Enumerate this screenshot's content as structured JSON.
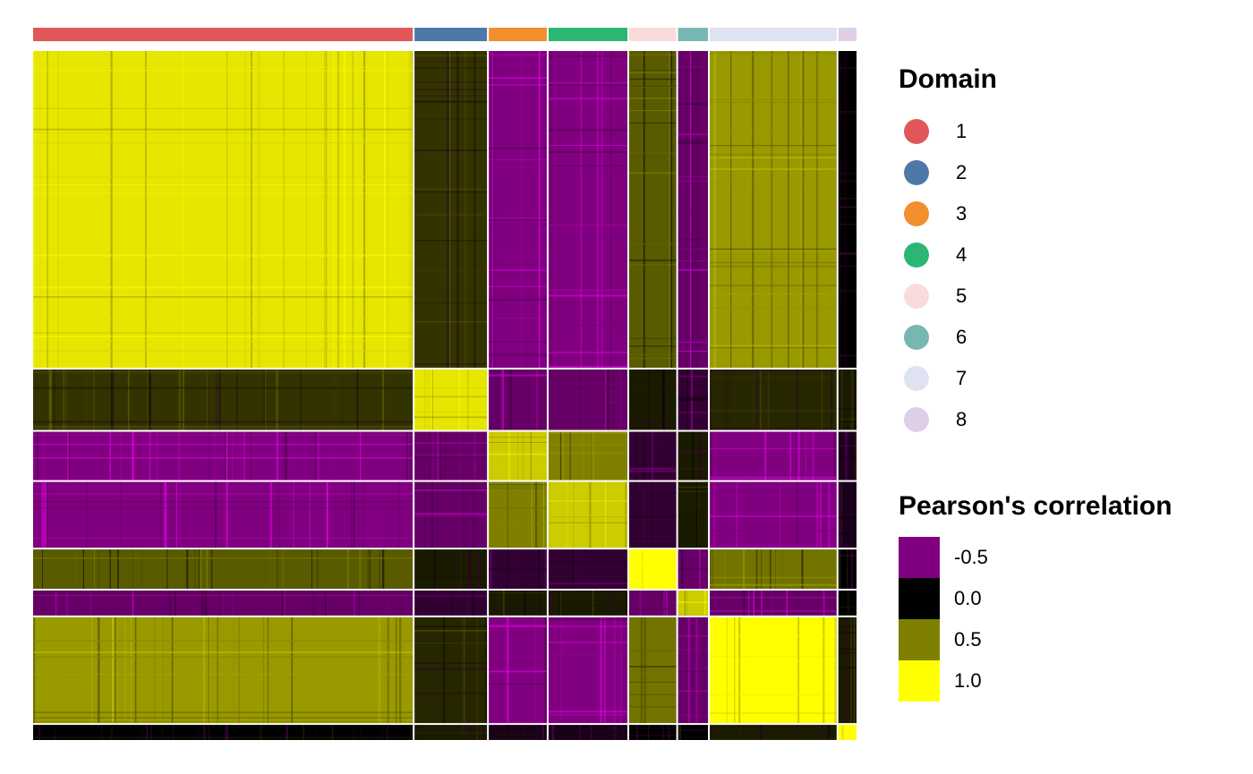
{
  "chart_data": {
    "type": "heatmap",
    "value": "Pearson's correlation between spots, grouped by spatial domain",
    "domains": [
      {
        "label": "1",
        "color": "#E15759",
        "n_spots": 419
      },
      {
        "label": "2",
        "color": "#4E79A7",
        "n_spots": 80
      },
      {
        "label": "3",
        "color": "#F28E2B",
        "n_spots": 64
      },
      {
        "label": "4",
        "color": "#2BB673",
        "n_spots": 87
      },
      {
        "label": "5",
        "color": "#FADADA",
        "n_spots": 52
      },
      {
        "label": "6",
        "color": "#76B7B2",
        "n_spots": 33
      },
      {
        "label": "7",
        "color": "#DFE2F0",
        "n_spots": 140
      },
      {
        "label": "8",
        "color": "#DECFE6",
        "n_spots": 20
      }
    ],
    "block_mean_correlation": [
      [
        0.9,
        0.2,
        -0.5,
        -0.5,
        0.35,
        -0.4,
        0.6,
        0.0
      ],
      [
        0.2,
        0.9,
        -0.4,
        -0.4,
        0.1,
        -0.2,
        0.15,
        0.1
      ],
      [
        -0.5,
        -0.4,
        0.8,
        0.5,
        -0.2,
        0.1,
        -0.5,
        -0.1
      ],
      [
        -0.5,
        -0.4,
        0.5,
        0.8,
        -0.2,
        0.1,
        -0.5,
        -0.1
      ],
      [
        0.35,
        0.1,
        -0.2,
        -0.2,
        1.0,
        -0.4,
        0.45,
        0.0
      ],
      [
        -0.4,
        -0.2,
        0.1,
        0.1,
        -0.4,
        0.8,
        -0.4,
        0.0
      ],
      [
        0.6,
        0.15,
        -0.5,
        -0.5,
        0.45,
        -0.4,
        1.0,
        0.1
      ],
      [
        0.0,
        0.1,
        -0.1,
        -0.1,
        0.0,
        0.0,
        0.1,
        1.0
      ]
    ],
    "colorscale": [
      {
        "value": -0.5,
        "color": "#800080"
      },
      {
        "value": 0.0,
        "color": "#000000"
      },
      {
        "value": 0.5,
        "color": "#808000"
      },
      {
        "value": 1.0,
        "color": "#FFFF00"
      }
    ],
    "extreme_color_low": "#FF00FF",
    "color_range": [
      -0.75,
      1.0
    ]
  },
  "legend": {
    "domain_title": "Domain",
    "domain_labels": [
      "1",
      "2",
      "3",
      "4",
      "5",
      "6",
      "7",
      "8"
    ],
    "colorbar_title": "Pearson's correlation",
    "colorbar_labels": [
      "-0.5",
      "0.0",
      "0.5",
      "1.0"
    ]
  }
}
